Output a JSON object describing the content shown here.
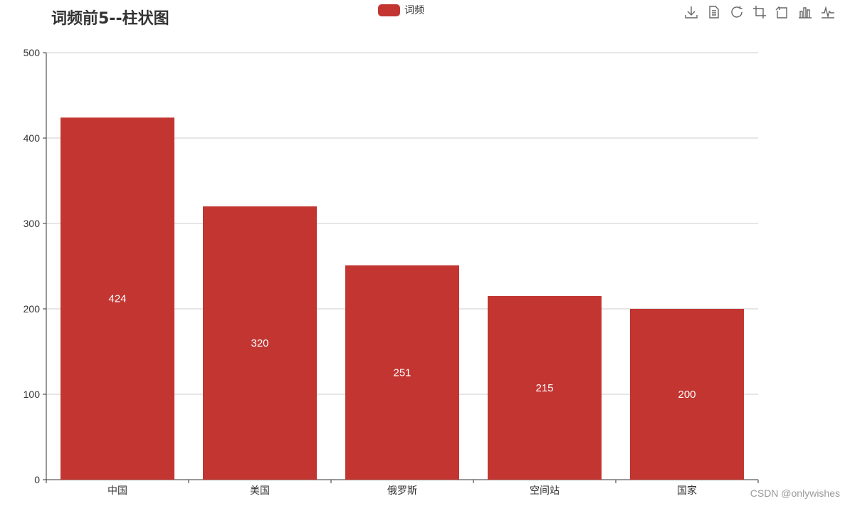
{
  "chart_data": {
    "type": "bar",
    "title": "词频前5--柱状图",
    "categories": [
      "中国",
      "美国",
      "俄罗斯",
      "空间站",
      "国家"
    ],
    "series": [
      {
        "name": "词频",
        "values": [
          424,
          320,
          251,
          215,
          200
        ],
        "color": "#c23531"
      }
    ],
    "ylim": [
      0,
      500
    ],
    "yticks": [
      0,
      100,
      200,
      300,
      400,
      500
    ],
    "grid": "horizontal",
    "legend": "top-center",
    "data_labels": "inside-center"
  },
  "toolbox": {
    "icons": [
      "download-icon",
      "data-view-icon",
      "restore-icon",
      "zoom-icon",
      "zoom-reset-icon",
      "bar-chart-icon",
      "line-chart-icon"
    ]
  },
  "watermark": "CSDN @onlywishes",
  "colors": {
    "bar": "#c23531",
    "axis": "#333333",
    "grid": "#cccccc",
    "label": "#ffffff",
    "toolbox": "#666666"
  }
}
